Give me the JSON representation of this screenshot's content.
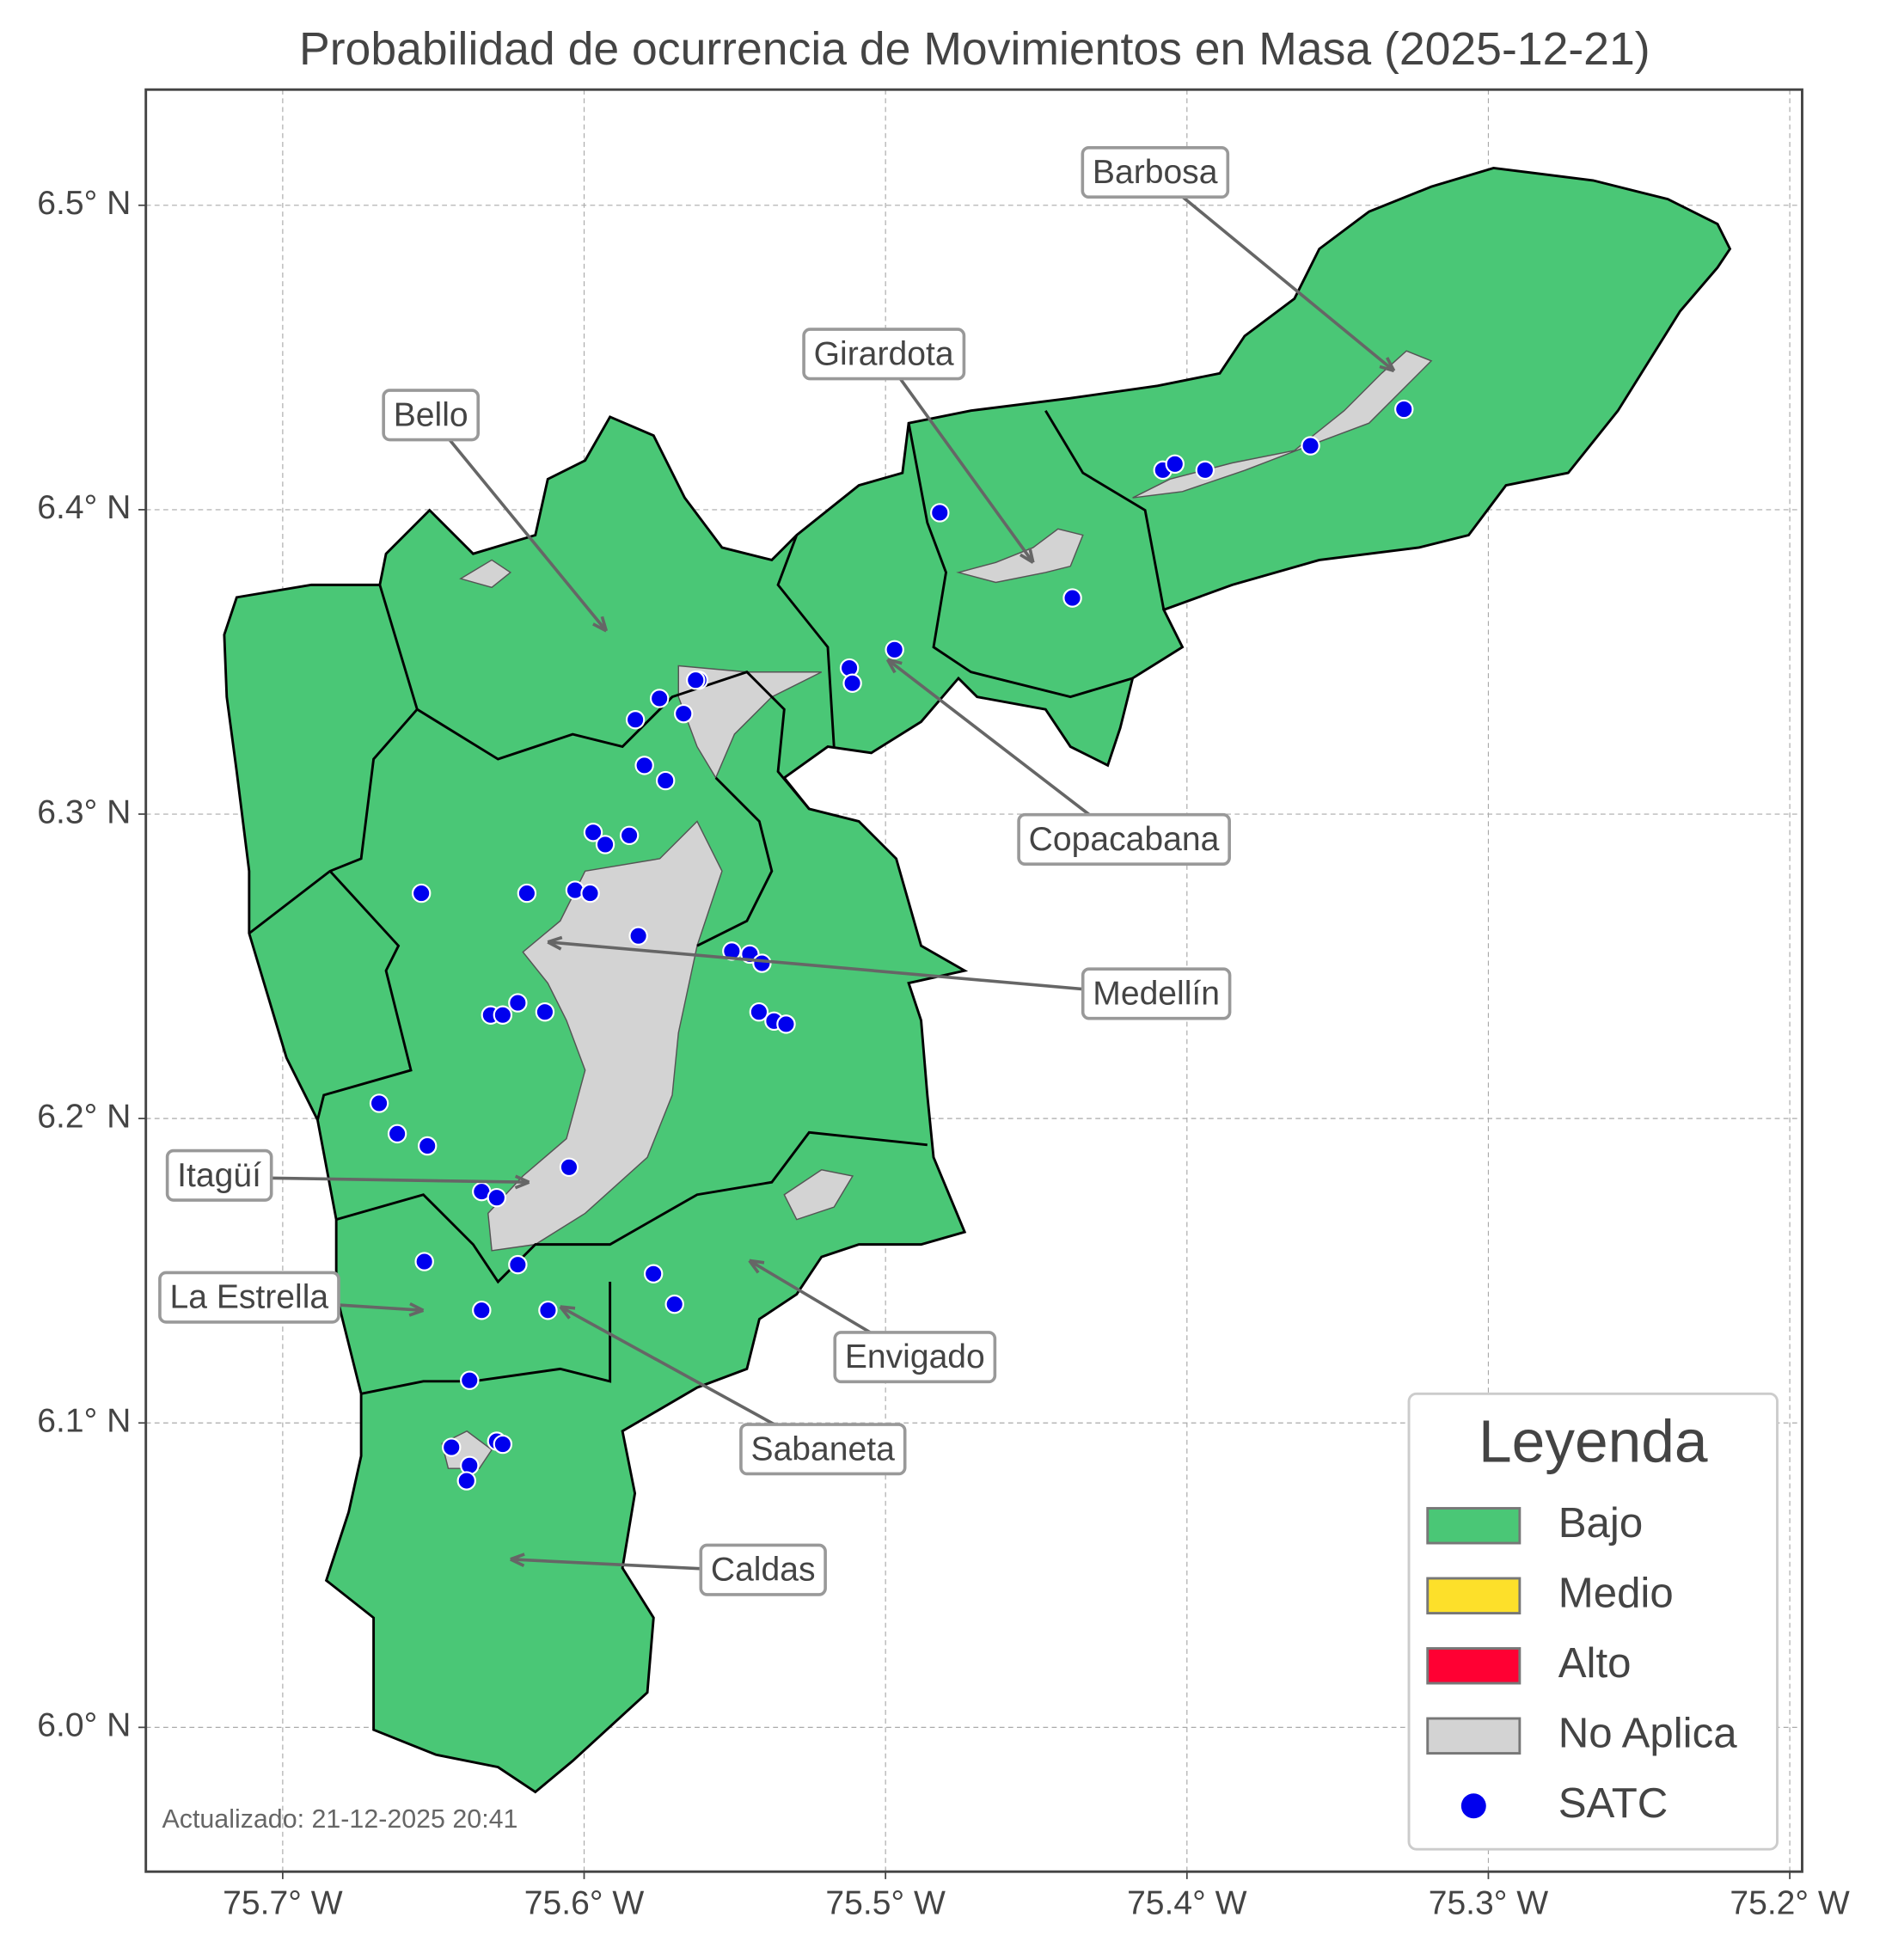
{
  "title": "Probabilidad de ocurrencia de Movimientos en Masa (2025-12-21)",
  "axes": {
    "xlim": [
      -75.7454,
      -75.1959
    ],
    "ylim": [
      5.9526,
      6.538
    ],
    "xticks": [
      {
        "value": -75.7,
        "label": "75.7° W"
      },
      {
        "value": -75.6,
        "label": "75.6° W"
      },
      {
        "value": -75.5,
        "label": "75.5° W"
      },
      {
        "value": -75.4,
        "label": "75.4° W"
      },
      {
        "value": -75.3,
        "label": "75.3° W"
      },
      {
        "value": -75.2,
        "label": "75.2° W"
      }
    ],
    "yticks": [
      {
        "value": 6.0,
        "label": "6.0° N"
      },
      {
        "value": 6.1,
        "label": "6.1° N"
      },
      {
        "value": 6.2,
        "label": "6.2° N"
      },
      {
        "value": 6.3,
        "label": "6.3° N"
      },
      {
        "value": 6.4,
        "label": "6.4° N"
      },
      {
        "value": 6.5,
        "label": "6.5° N"
      }
    ],
    "grid": true
  },
  "labels": [
    "Barbosa",
    "Girardota",
    "Bello",
    "Copacabana",
    "Medellín",
    "Itagüí",
    "La Estrella",
    "Envigado",
    "Sabaneta",
    "Caldas"
  ],
  "legend": {
    "title": "Leyenda",
    "position": "lower right",
    "items": [
      {
        "name": "Bajo",
        "color": "#4ac776",
        "symbol": "patch"
      },
      {
        "name": "Medio",
        "color": "#fde02a",
        "symbol": "patch"
      },
      {
        "name": "Alto",
        "color": "#ff0033",
        "symbol": "patch"
      },
      {
        "name": "No Aplica",
        "color": "#d3d3d3",
        "symbol": "patch"
      },
      {
        "name": "SATC",
        "color": "#0000ee",
        "symbol": "circle"
      }
    ]
  },
  "stations": {
    "lon": [
      -75.482,
      -75.408,
      -75.404,
      -75.394,
      -75.359,
      -75.328,
      -75.438,
      -75.497,
      -75.512,
      -75.511,
      -75.562,
      -75.563,
      -75.575,
      -75.583,
      -75.567,
      -75.58,
      -75.573,
      -75.597,
      -75.585,
      -75.593,
      -75.654,
      -75.619,
      -75.603,
      -75.598,
      -75.582,
      -75.551,
      -75.545,
      -75.541,
      -75.542,
      -75.537,
      -75.533,
      -75.622,
      -75.631,
      -75.627,
      -75.613,
      -75.668,
      -75.662,
      -75.652,
      -75.605,
      -75.634,
      -75.629,
      -75.653,
      -75.622,
      -75.577,
      -75.57,
      -75.634,
      -75.612,
      -75.638,
      -75.644,
      -75.638,
      -75.639,
      -75.629,
      -75.627
    ],
    "lat": [
      6.399,
      6.413,
      6.415,
      6.413,
      6.421,
      6.433,
      6.371,
      6.354,
      6.348,
      6.343,
      6.344,
      6.344,
      6.338,
      6.331,
      6.333,
      6.316,
      6.311,
      6.294,
      6.293,
      6.29,
      6.274,
      6.274,
      6.275,
      6.274,
      6.26,
      6.255,
      6.254,
      6.251,
      6.235,
      6.232,
      6.231,
      6.238,
      6.234,
      6.234,
      6.235,
      6.205,
      6.195,
      6.191,
      6.184,
      6.176,
      6.174,
      6.153,
      6.152,
      6.149,
      6.139,
      6.137,
      6.137,
      6.114,
      6.092,
      6.086,
      6.081,
      6.094,
      6.093
    ]
  },
  "footnote": "Actualizado: 21-12-2025 20:41"
}
